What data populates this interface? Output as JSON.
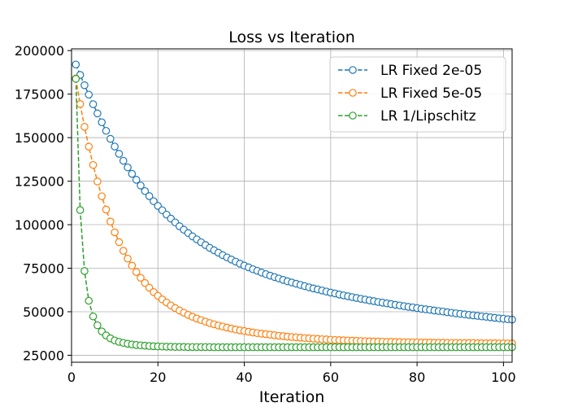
{
  "chart_data": {
    "type": "line",
    "title": "Loss vs Iteration",
    "xlabel": "Iteration",
    "ylabel": "",
    "xlim": [
      0,
      102
    ],
    "ylim": [
      21000,
      201000
    ],
    "xticks": [
      0,
      20,
      40,
      60,
      80,
      100
    ],
    "yticks": [
      25000,
      50000,
      75000,
      100000,
      125000,
      150000,
      175000,
      200000
    ],
    "grid": true,
    "legend_position": "top-right",
    "x": [
      1,
      2,
      3,
      4,
      5,
      6,
      7,
      8,
      9,
      10,
      11,
      12,
      13,
      14,
      15,
      16,
      17,
      18,
      19,
      20,
      21,
      22,
      23,
      24,
      25,
      26,
      27,
      28,
      29,
      30,
      31,
      32,
      33,
      34,
      35,
      36,
      37,
      38,
      39,
      40,
      41,
      42,
      43,
      44,
      45,
      46,
      47,
      48,
      49,
      50,
      51,
      52,
      53,
      54,
      55,
      56,
      57,
      58,
      59,
      60,
      61,
      62,
      63,
      64,
      65,
      66,
      67,
      68,
      69,
      70,
      71,
      72,
      73,
      74,
      75,
      76,
      77,
      78,
      79,
      80,
      81,
      82,
      83,
      84,
      85,
      86,
      87,
      88,
      89,
      90,
      91,
      92,
      93,
      94,
      95,
      96,
      97,
      98,
      99,
      100,
      101,
      102
    ],
    "series": [
      {
        "name": "LR Fixed 2e-05",
        "color": "#1f77b4",
        "values": [
          192000,
          186000,
          180100,
          174700,
          169200,
          163900,
          158800,
          153900,
          149300,
          144900,
          140700,
          136700,
          132900,
          129200,
          125800,
          122500,
          119300,
          116400,
          113500,
          110800,
          108300,
          105800,
          103500,
          101300,
          99100,
          97100,
          95200,
          93300,
          91600,
          89900,
          88300,
          86700,
          85300,
          83900,
          82500,
          81200,
          80000,
          78800,
          77600,
          76500,
          75500,
          74400,
          73500,
          72500,
          71600,
          70700,
          69900,
          69100,
          68300,
          67500,
          66800,
          66100,
          65400,
          64700,
          64000,
          63400,
          62800,
          62200,
          61600,
          61000,
          60500,
          59900,
          59400,
          58900,
          58400,
          57900,
          57400,
          57000,
          56500,
          56100,
          55600,
          55200,
          54800,
          54400,
          54000,
          53600,
          53200,
          52800,
          52500,
          52100,
          51700,
          51400,
          51100,
          50700,
          50400,
          50100,
          49700,
          49400,
          49100,
          48800,
          48500,
          48200,
          47900,
          47600,
          47300,
          47100,
          46800,
          46500,
          46200,
          46000,
          45700,
          45500
        ]
      },
      {
        "name": "LR Fixed 5e-05",
        "color": "#ff7f0e",
        "values": [
          184000,
          169300,
          156200,
          144800,
          134300,
          124800,
          116300,
          108700,
          101800,
          95600,
          90000,
          85000,
          80500,
          76500,
          72800,
          69500,
          66500,
          63800,
          61300,
          59100,
          57100,
          55300,
          53600,
          52100,
          50700,
          49400,
          48200,
          47100,
          46100,
          45200,
          44300,
          43500,
          42800,
          42100,
          41500,
          40900,
          40300,
          39800,
          39300,
          38900,
          38500,
          38100,
          37700,
          37400,
          37100,
          36800,
          36500,
          36200,
          36000,
          35700,
          35500,
          35300,
          35100,
          34900,
          34700,
          34500,
          34400,
          34200,
          34100,
          33900,
          33800,
          33700,
          33600,
          33500,
          33400,
          33300,
          33200,
          33100,
          33000,
          32900,
          32900,
          32800,
          32700,
          32700,
          32600,
          32600,
          32500,
          32500,
          32400,
          32400,
          32300,
          32300,
          32300,
          32200,
          32200,
          32200,
          32100,
          32100,
          32100,
          32000,
          32000,
          32000,
          32000,
          31900,
          31900,
          31900,
          31900,
          31900,
          31800,
          31800,
          31800,
          31800
        ]
      },
      {
        "name": "LR 1/Lipschitz",
        "color": "#2ca02c",
        "values": [
          183800,
          108400,
          73400,
          56300,
          47300,
          42200,
          38700,
          36400,
          34700,
          33500,
          32700,
          32100,
          31600,
          31200,
          30900,
          30700,
          30500,
          30300,
          30200,
          30100,
          30000,
          29900,
          29900,
          29800,
          29800,
          29800,
          29700,
          29700,
          29700,
          29700,
          29700,
          29700,
          29600,
          29600,
          29600,
          29600,
          29600,
          29600,
          29600,
          29600,
          29600,
          29600,
          29600,
          29600,
          29600,
          29600,
          29600,
          29600,
          29600,
          29600,
          29600,
          29600,
          29600,
          29600,
          29600,
          29600,
          29600,
          29600,
          29600,
          29600,
          29600,
          29600,
          29600,
          29600,
          29600,
          29600,
          29600,
          29600,
          29600,
          29600,
          29600,
          29600,
          29600,
          29600,
          29600,
          29600,
          29600,
          29600,
          29600,
          29600,
          29600,
          29600,
          29600,
          29600,
          29600,
          29600,
          29600,
          29600,
          29600,
          29600,
          29600,
          29600,
          29600,
          29600,
          29600,
          29600,
          29600,
          29600,
          29600,
          29600,
          29600,
          29600
        ]
      }
    ]
  }
}
